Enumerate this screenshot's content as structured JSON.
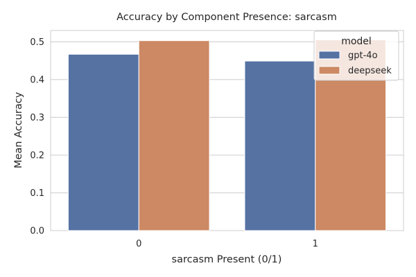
{
  "chart_data": {
    "type": "bar",
    "title": "Accuracy by Component Presence: sarcasm",
    "xlabel": "sarcasm Present (0/1)",
    "ylabel": "Mean Accuracy",
    "categories": [
      "0",
      "1"
    ],
    "series": [
      {
        "name": "gpt-4o",
        "values": [
          0.467,
          0.449
        ],
        "color": "#5572a3"
      },
      {
        "name": "deepseek",
        "values": [
          0.503,
          0.505
        ],
        "color": "#cc8963"
      }
    ],
    "ylim": [
      0,
      0.53
    ],
    "yticks": [
      0.0,
      0.1,
      0.2,
      0.3,
      0.4,
      0.5
    ],
    "grid": true,
    "legend": {
      "title": "model",
      "placement": "top-right"
    }
  }
}
